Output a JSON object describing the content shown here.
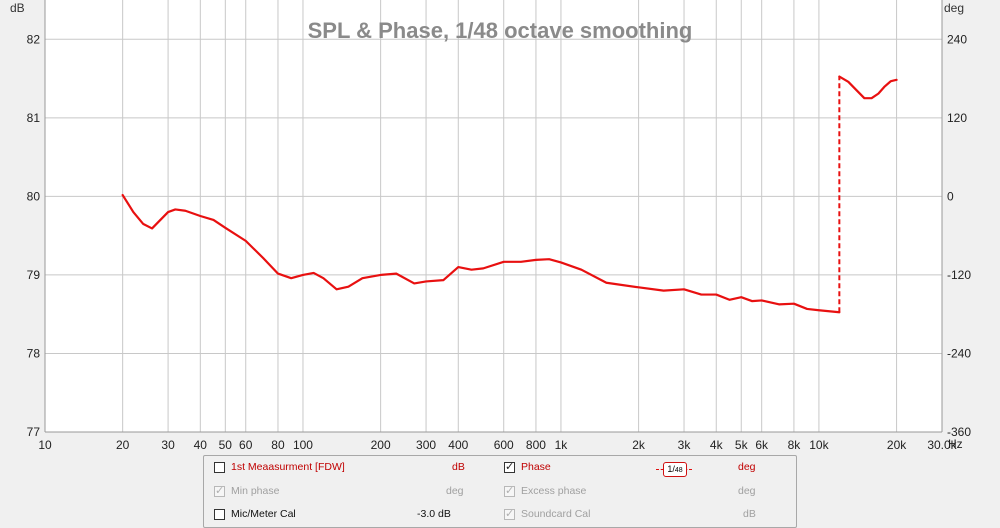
{
  "chart_data": {
    "type": "line",
    "title": "SPL & Phase, 1/48 octave smoothing",
    "xlabel": "Hz",
    "ylabel_left": "dB",
    "ylabel_right": "deg",
    "x_scale": "log",
    "xlim": [
      10,
      30000
    ],
    "ylim_left": [
      77,
      82.5
    ],
    "ylim_right": [
      -360,
      300
    ],
    "grid": true,
    "x_ticks": [
      10,
      20,
      30,
      40,
      50,
      60,
      80,
      100,
      200,
      300,
      400,
      600,
      800,
      1000,
      2000,
      3000,
      4000,
      5000,
      6000,
      8000,
      10000,
      20000,
      30000
    ],
    "x_tick_labels": [
      "10",
      "20",
      "30",
      "40",
      "50",
      "60",
      "80",
      "100",
      "200",
      "300",
      "400",
      "600",
      "800",
      "1k",
      "2k",
      "3k",
      "4k",
      "5k",
      "6k",
      "8k",
      "10k",
      "20k",
      "30.0k"
    ],
    "y_left_ticks": [
      77,
      78,
      79,
      80,
      81,
      82
    ],
    "y_right_ticks": [
      -360,
      -240,
      -120,
      0,
      120,
      240
    ],
    "series": [
      {
        "name": "Phase",
        "color": "#e81010",
        "axis": "right",
        "x": [
          20,
          22,
          24,
          26,
          28,
          30,
          32,
          35,
          40,
          45,
          50,
          60,
          70,
          80,
          90,
          100,
          110,
          120,
          135,
          150,
          170,
          200,
          230,
          270,
          300,
          350,
          400,
          450,
          500,
          600,
          700,
          800,
          900,
          1000,
          1200,
          1500,
          2000,
          2500,
          3000,
          3500,
          4000,
          4500,
          5000,
          5500,
          6000,
          7000,
          8000,
          9000,
          10000,
          12000
        ],
        "y": [
          2,
          -24,
          -42,
          -49,
          -36,
          -24,
          -20,
          -22,
          -30,
          -36,
          -48,
          -68,
          -94,
          -118,
          -125,
          -120,
          -117,
          -125,
          -142,
          -138,
          -125,
          -120,
          -118,
          -133,
          -130,
          -128,
          -108,
          -112,
          -110,
          -100,
          -100,
          -97,
          -96,
          -101,
          -112,
          -132,
          -139,
          -144,
          -142,
          -150,
          -150,
          -158,
          -154,
          -160,
          -159,
          -165,
          -164,
          -172,
          -174,
          -177
        ]
      },
      {
        "name": "Phase (wrapped)",
        "color": "#e81010",
        "axis": "right",
        "x": [
          12000,
          13000,
          14000,
          15000,
          16000,
          17000,
          18000,
          19000,
          20000
        ],
        "y": [
          183,
          175,
          162,
          150,
          150,
          157,
          168,
          176,
          178
        ]
      }
    ]
  },
  "legend": {
    "row1": {
      "left_label": "1st Meaasurment [FDW]",
      "left_unit": "dB",
      "right_label": "Phase",
      "smoothing_num": "1",
      "smoothing_den": "48",
      "right_unit": "deg"
    },
    "row2": {
      "left_label": "Min phase",
      "left_unit": "deg",
      "right_label": "Excess phase",
      "right_unit": "deg"
    },
    "row3": {
      "left_label": "Mic/Meter Cal",
      "left_unit": "-3.0 dB",
      "right_label": "Soundcard Cal",
      "right_unit": "dB"
    },
    "checks": {
      "measurement": false,
      "phase": true,
      "min_phase": true,
      "excess_phase": true,
      "mic_cal": false,
      "soundcard_cal": true
    }
  }
}
